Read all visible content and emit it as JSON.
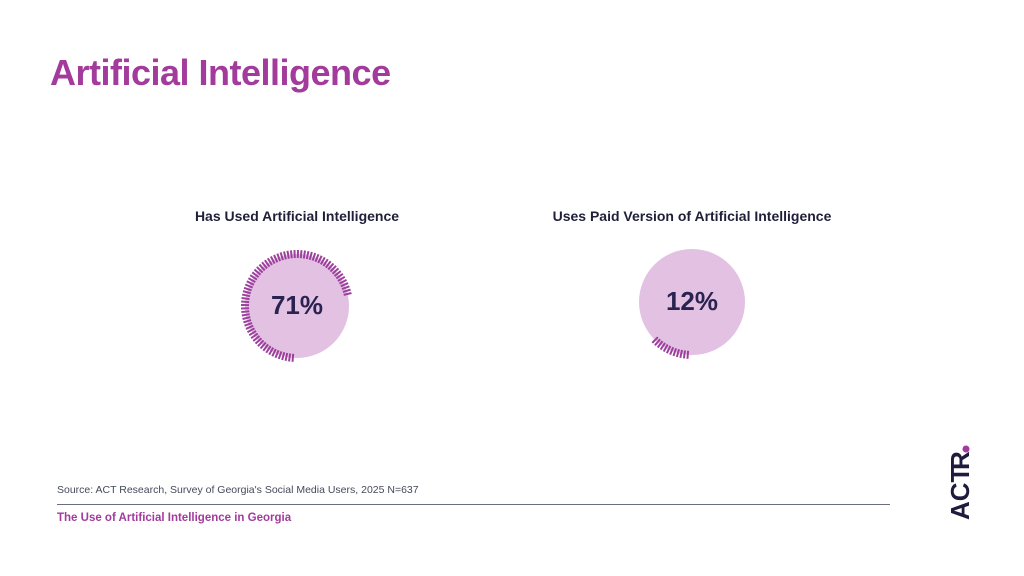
{
  "page": {
    "title": "Artificial Intelligence",
    "source": "Source: ACT Research, Survey of Georgia's Social Media Users, 2025 N=637",
    "footer": "The Use of Artificial Intelligence in Georgia",
    "logo_text": "ACT",
    "logo_dot": "R"
  },
  "colors": {
    "accent": "#a23b9c",
    "circle_fill": "#e3c1e3",
    "ticks": "#9d3f9c",
    "value_text": "#2a2350",
    "label_text": "#1f1f3a"
  },
  "chart_data": [
    {
      "type": "pie",
      "title": "Has Used Artificial Intelligence",
      "value": 71,
      "label": "71%"
    },
    {
      "type": "pie",
      "title": "Uses Paid Version of Artificial Intelligence",
      "value": 12,
      "label": "12%"
    }
  ]
}
